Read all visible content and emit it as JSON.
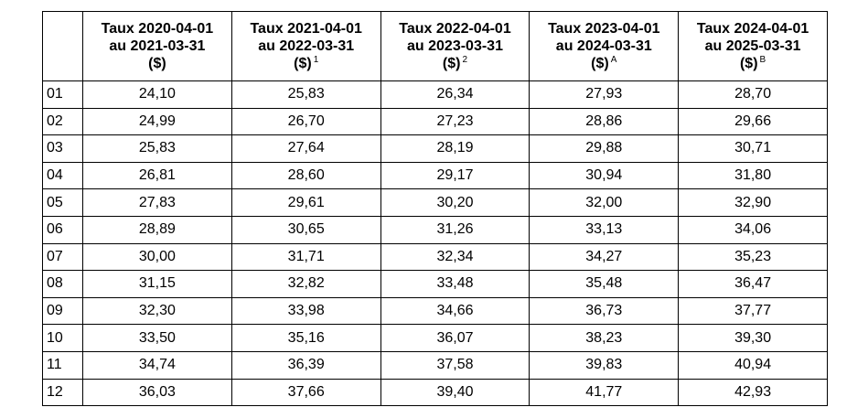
{
  "table": {
    "header": [
      {
        "lines": [
          "Taux 2020-04-01",
          "au 2021-03-31",
          "($)"
        ]
      },
      {
        "lines": [
          "Taux 2021-04-01",
          "au 2022-03-31",
          "($)"
        ],
        "note": "1"
      },
      {
        "lines": [
          "Taux 2022-04-01",
          "au 2023-03-31",
          "($)"
        ],
        "note": "2"
      },
      {
        "lines": [
          "Taux 2023-04-01",
          "au 2024-03-31",
          "($)"
        ],
        "note": "A"
      },
      {
        "lines": [
          "Taux 2024-04-01",
          "au 2025-03-31",
          "($)"
        ],
        "note": "B"
      }
    ],
    "rows": [
      [
        "01",
        "24,10",
        "25,83",
        "26,34",
        "27,93",
        "28,70"
      ],
      [
        "02",
        "24,99",
        "26,70",
        "27,23",
        "28,86",
        "29,66"
      ],
      [
        "03",
        "25,83",
        "27,64",
        "28,19",
        "29,88",
        "30,71"
      ],
      [
        "04",
        "26,81",
        "28,60",
        "29,17",
        "30,94",
        "31,80"
      ],
      [
        "05",
        "27,83",
        "29,61",
        "30,20",
        "32,00",
        "32,90"
      ],
      [
        "06",
        "28,89",
        "30,65",
        "31,26",
        "33,13",
        "34,06"
      ],
      [
        "07",
        "30,00",
        "31,71",
        "32,34",
        "34,27",
        "35,23"
      ],
      [
        "08",
        "31,15",
        "32,82",
        "33,48",
        "35,48",
        "36,47"
      ],
      [
        "09",
        "32,30",
        "33,98",
        "34,66",
        "36,73",
        "37,77"
      ],
      [
        "10",
        "33,50",
        "35,16",
        "36,07",
        "38,23",
        "39,30"
      ],
      [
        "11",
        "34,74",
        "36,39",
        "37,58",
        "39,83",
        "40,94"
      ],
      [
        "12",
        "36,03",
        "37,66",
        "39,40",
        "41,77",
        "42,93"
      ]
    ]
  }
}
